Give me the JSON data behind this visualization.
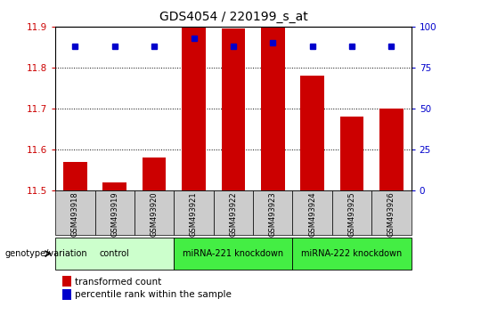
{
  "title": "GDS4054 / 220199_s_at",
  "samples": [
    "GSM493918",
    "GSM493919",
    "GSM493920",
    "GSM493921",
    "GSM493922",
    "GSM493923",
    "GSM493924",
    "GSM493925",
    "GSM493926"
  ],
  "transformed_counts": [
    11.57,
    11.52,
    11.58,
    11.9,
    11.895,
    11.9,
    11.78,
    11.68,
    11.7
  ],
  "percentile_ranks": [
    88,
    88,
    88,
    93,
    88,
    90,
    88,
    88,
    88
  ],
  "ymin": 11.5,
  "ymax": 11.9,
  "yticks": [
    11.5,
    11.6,
    11.7,
    11.8,
    11.9
  ],
  "right_yticks": [
    0,
    25,
    50,
    75,
    100
  ],
  "bar_color": "#cc0000",
  "dot_color": "#0000cc",
  "groups": [
    {
      "label": "control",
      "start": 0,
      "end": 3,
      "color": "#ccffcc"
    },
    {
      "label": "miRNA-221 knockdown",
      "start": 3,
      "end": 6,
      "color": "#44ee44"
    },
    {
      "label": "miRNA-222 knockdown",
      "start": 6,
      "end": 9,
      "color": "#44ee44"
    }
  ],
  "legend_bar_label": "transformed count",
  "legend_dot_label": "percentile rank within the sample",
  "genotype_label": "genotype/variation",
  "background_color": "#ffffff",
  "tick_label_color_left": "#cc0000",
  "tick_label_color_right": "#0000cc",
  "sample_box_color": "#cccccc",
  "title_fontsize": 10,
  "tick_fontsize": 7.5,
  "label_fontsize": 7,
  "legend_fontsize": 7.5
}
